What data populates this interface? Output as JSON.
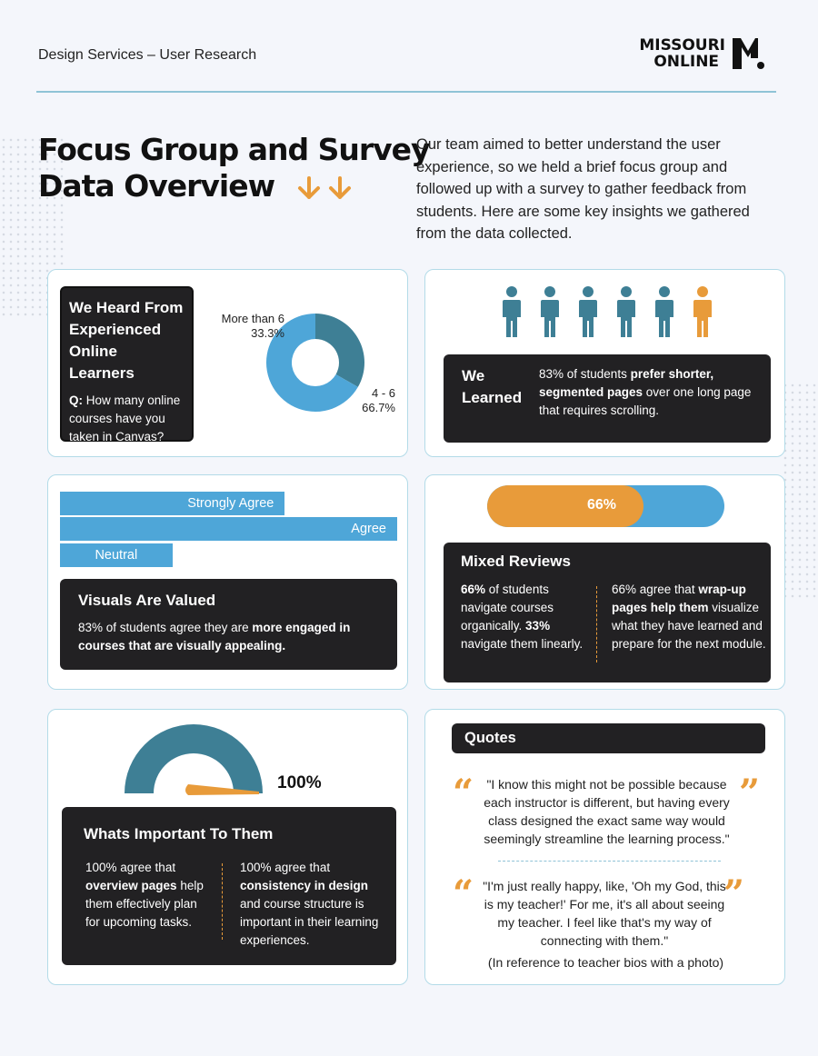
{
  "header": {
    "label": "Design Services – User Research",
    "logo_line1": "MISSOURI",
    "logo_line2": "ONLINE"
  },
  "title": {
    "line1": "Focus Group and Survey",
    "line2": "Data Overview"
  },
  "intro": "Our team aimed to better understand the user experience, so we held a brief focus group and followed up with a survey to gather feedback from students. Here are some key insights we gathered from the data collected.",
  "colors": {
    "orange": "#e89b3a",
    "blue": "#4ea6d8",
    "teal": "#3e7f95",
    "dark": "#222123"
  },
  "card1": {
    "heading": "We Heard From Experienced Online Learners",
    "question_label": "Q:",
    "question": " How many online courses have you taken in Canvas?"
  },
  "card2": {
    "heading": "We Learned",
    "text_a": "83% of students ",
    "text_b": "prefer shorter, segmented pages",
    "text_c": " over one long page that requires scrolling.",
    "figures_total": 6,
    "figures_highlighted": 1
  },
  "card3": {
    "heading": "Visuals Are Valued",
    "text_a": "83% of students agree they are ",
    "text_b": "more engaged in courses that are visually appealing."
  },
  "card4": {
    "progress_label": "66%",
    "progress_value": 0.66,
    "heading": "Mixed Reviews",
    "col1_a": "66%",
    "col1_b": " of students navigate courses organically. ",
    "col1_c": "33%",
    "col1_d": " navigate them linearly.",
    "col2_a": "66% agree that ",
    "col2_b": "wrap-up pages help them",
    "col2_c": " visualize what they have learned and prepare for the next module."
  },
  "card5": {
    "gauge_label": "100%",
    "gauge_value": 1.0,
    "heading": "Whats Important To Them",
    "col1_a": "100% agree that ",
    "col1_b": "overview pages",
    "col1_c": " help them effectively plan for upcoming tasks.",
    "col2_a": "100% agree that ",
    "col2_b": "consistency in design",
    "col2_c": " and course structure is important in their learning experiences."
  },
  "card6": {
    "heading": "Quotes",
    "quote1": "\"I know this might not be possible because each instructor is different, but having every class designed the exact same way would seemingly streamline the learning process.\"",
    "quote2": "\"I'm just really happy, like, 'Oh my God, this is my teacher!' For me, it's all about seeing my teacher. I feel like that's my way of connecting with them.\"",
    "reference": "(In reference to teacher bios with a photo)"
  },
  "chart_data": [
    {
      "type": "pie",
      "categories": [
        "More than 6",
        "4 - 6"
      ],
      "values": [
        33.3,
        66.7
      ],
      "value_labels": [
        "33.3%",
        "66.7%"
      ],
      "colors": [
        "#3e7f95",
        "#4ea6d8"
      ]
    },
    {
      "type": "bar",
      "orientation": "horizontal",
      "categories": [
        "Strongly Agree",
        "Agree",
        "Neutral"
      ],
      "values": [
        2,
        3,
        1
      ],
      "xlim": [
        0,
        3
      ]
    }
  ]
}
